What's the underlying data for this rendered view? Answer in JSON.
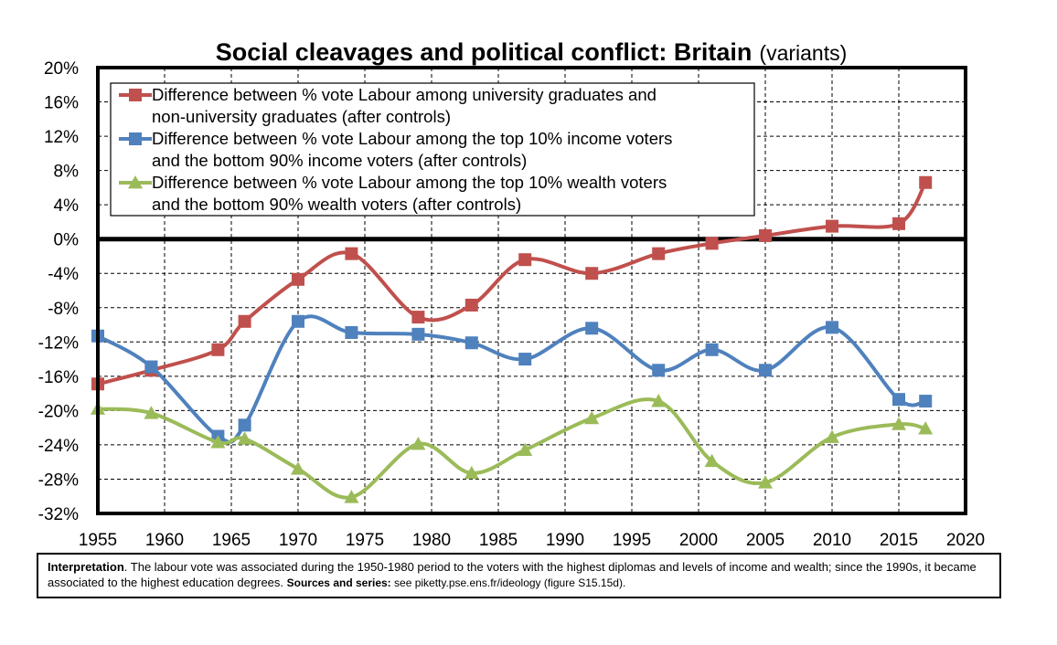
{
  "chart_data": {
    "type": "line",
    "title": "Social cleavages and political conflict: Britain",
    "subtitle": "(variants)",
    "xlabel": "",
    "ylabel": "",
    "xlim": [
      1955,
      2020
    ],
    "ylim": [
      -32,
      20
    ],
    "x_ticks": [
      "1955",
      "1960",
      "1965",
      "1970",
      "1975",
      "1980",
      "1985",
      "1990",
      "1995",
      "2000",
      "2005",
      "2010",
      "2015",
      "2020"
    ],
    "y_ticks": [
      "20%",
      "16%",
      "12%",
      "8%",
      "4%",
      "0%",
      "-4%",
      "-8%",
      "-12%",
      "-16%",
      "-20%",
      "-24%",
      "-28%",
      "-32%"
    ],
    "grid": "horizontal and vertical dashed",
    "legend_position": "top-left",
    "series": [
      {
        "name_lines": [
          "Difference between % vote Labour among university graduates and",
          "non-university graduates (after controls)"
        ],
        "color": "#c0504d",
        "marker": "square",
        "x": [
          1955,
          1959,
          1964,
          1966,
          1970,
          1974,
          1979,
          1983,
          1987,
          1992,
          1997,
          2001,
          2005,
          2010,
          2015,
          2017
        ],
        "values": [
          -16.9,
          -15.3,
          -12.9,
          -9.6,
          -4.7,
          -1.7,
          -9.1,
          -7.7,
          -2.4,
          -4.0,
          -1.7,
          -0.5,
          0.4,
          1.5,
          1.8,
          6.6
        ]
      },
      {
        "name_lines": [
          "Difference between % vote Labour among the top 10% income voters",
          "and the bottom 90% income voters (after controls)"
        ],
        "color": "#4f81bd",
        "marker": "square",
        "x": [
          1955,
          1959,
          1964,
          1966,
          1970,
          1974,
          1979,
          1983,
          1987,
          1992,
          1997,
          2001,
          2005,
          2010,
          2015,
          2017
        ],
        "values": [
          -11.3,
          -14.9,
          -23.0,
          -21.7,
          -9.6,
          -10.9,
          -11.1,
          -12.1,
          -14.0,
          -10.4,
          -15.3,
          -12.9,
          -15.3,
          -10.3,
          -18.7,
          -18.9
        ]
      },
      {
        "name_lines": [
          "Difference between % vote Labour among the top 10% wealth voters",
          "and the bottom 90% wealth voters (after controls)"
        ],
        "color": "#9bbb59",
        "marker": "triangle",
        "x": [
          1955,
          1959,
          1964,
          1966,
          1970,
          1974,
          1979,
          1983,
          1987,
          1992,
          1997,
          2001,
          2005,
          2010,
          2015,
          2017
        ],
        "values": [
          -19.8,
          -20.3,
          -23.7,
          -23.3,
          -26.8,
          -30.1,
          -23.9,
          -27.3,
          -24.6,
          -20.9,
          -18.9,
          -25.9,
          -28.4,
          -23.1,
          -21.6,
          -22.1
        ]
      }
    ]
  },
  "note": {
    "label": "Interpretation",
    "text": ". The labour vote was associated during the 1950-1980 period to the voters with the highest diplomas and levels of income and wealth; since the 1990s, it became associated to the highest education degrees. ",
    "sources_label": "Sources and series:",
    "sources_text": " see piketty.pse.ens.fr/ideology (figure S15.15d)."
  }
}
